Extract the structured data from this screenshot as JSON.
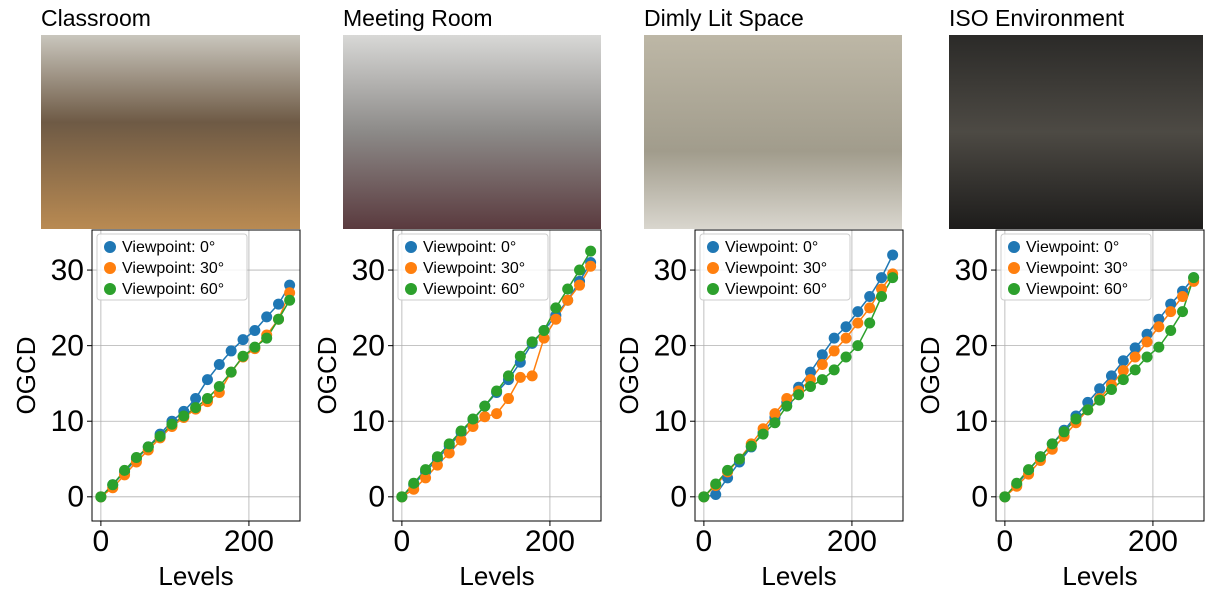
{
  "chart_data": [
    {
      "type": "line",
      "title": "Classroom",
      "xlabel": "Levels",
      "ylabel": "OGCD",
      "x": [
        0,
        16,
        32,
        48,
        64,
        80,
        96,
        112,
        128,
        144,
        160,
        176,
        192,
        208,
        224,
        240,
        255
      ],
      "series": [
        {
          "name": "Viewpoint: 0°",
          "color": "#1f77b4",
          "values": [
            0,
            1.6,
            3.3,
            5.0,
            6.6,
            8.3,
            10.0,
            11.3,
            13.0,
            15.5,
            17.5,
            19.3,
            20.8,
            22.0,
            23.8,
            25.5,
            28.0
          ]
        },
        {
          "name": "Viewpoint: 30°",
          "color": "#ff7f0e",
          "values": [
            0,
            1.2,
            2.9,
            4.6,
            6.2,
            7.8,
            9.3,
            10.5,
            11.6,
            12.6,
            13.8,
            16.5,
            18.5,
            19.6,
            21.4,
            23.5,
            27.0
          ]
        },
        {
          "name": "Viewpoint: 60°",
          "color": "#2ca02c",
          "values": [
            0,
            1.6,
            3.5,
            5.2,
            6.6,
            8.0,
            9.6,
            10.7,
            11.8,
            13.0,
            14.6,
            16.5,
            18.6,
            19.8,
            21.0,
            23.5,
            26.0
          ]
        }
      ],
      "xlim": [
        -12,
        269
      ],
      "ylim": [
        -3.2,
        35.3
      ],
      "xticks": [
        0,
        200
      ],
      "yticks": [
        0,
        10,
        20,
        30
      ],
      "grid": true,
      "legend": "upper left"
    },
    {
      "type": "line",
      "title": "Meeting Room",
      "xlabel": "Levels",
      "ylabel": "OGCD",
      "x": [
        0,
        16,
        32,
        48,
        64,
        80,
        96,
        112,
        128,
        144,
        160,
        176,
        192,
        208,
        224,
        240,
        255
      ],
      "series": [
        {
          "name": "Viewpoint: 0°",
          "color": "#1f77b4",
          "values": [
            0,
            1.6,
            3.3,
            5.0,
            6.7,
            8.5,
            10.2,
            12.0,
            13.8,
            15.5,
            17.8,
            20.3,
            22.0,
            24.0,
            26.0,
            28.5,
            31.0
          ]
        },
        {
          "name": "Viewpoint: 30°",
          "color": "#ff7f0e",
          "values": [
            0,
            1.0,
            2.5,
            4.2,
            5.8,
            7.5,
            9.3,
            10.6,
            11.0,
            13.0,
            15.8,
            16.0,
            21.0,
            23.5,
            26.0,
            28.0,
            30.5
          ]
        },
        {
          "name": "Viewpoint: 60°",
          "color": "#2ca02c",
          "values": [
            0,
            1.8,
            3.6,
            5.3,
            7.0,
            8.7,
            10.3,
            12.0,
            14.0,
            16.0,
            18.6,
            20.5,
            22.0,
            25.0,
            27.5,
            30.0,
            32.5
          ]
        }
      ],
      "xlim": [
        -12,
        269
      ],
      "ylim": [
        -3.2,
        35.3
      ],
      "xticks": [
        0,
        200
      ],
      "yticks": [
        0,
        10,
        20,
        30
      ],
      "grid": true,
      "legend": "upper left"
    },
    {
      "type": "line",
      "title": "Dimly Lit Space",
      "xlabel": "Levels",
      "ylabel": "OGCD",
      "x": [
        0,
        16,
        32,
        48,
        64,
        80,
        96,
        112,
        128,
        144,
        160,
        176,
        192,
        208,
        224,
        240,
        255
      ],
      "series": [
        {
          "name": "Viewpoint: 0°",
          "color": "#1f77b4",
          "values": [
            0,
            0.3,
            2.5,
            4.6,
            6.6,
            8.5,
            10.5,
            12.5,
            14.5,
            16.5,
            18.8,
            21.0,
            22.5,
            24.5,
            26.5,
            29.0,
            32.0
          ]
        },
        {
          "name": "Viewpoint: 30°",
          "color": "#ff7f0e",
          "values": [
            0,
            1.5,
            3.3,
            5.0,
            7.0,
            9.0,
            11.0,
            13.0,
            14.0,
            15.5,
            17.5,
            19.3,
            21.0,
            23.0,
            25.0,
            27.5,
            29.5
          ]
        },
        {
          "name": "Viewpoint: 60°",
          "color": "#2ca02c",
          "values": [
            0,
            1.7,
            3.5,
            5.0,
            6.7,
            8.3,
            9.8,
            12.0,
            13.5,
            14.6,
            15.5,
            16.8,
            18.5,
            20.0,
            23.0,
            26.5,
            29.0
          ]
        }
      ],
      "xlim": [
        -12,
        269
      ],
      "ylim": [
        -3.2,
        35.3
      ],
      "xticks": [
        0,
        200
      ],
      "yticks": [
        0,
        10,
        20,
        30
      ],
      "grid": true,
      "legend": "upper left"
    },
    {
      "type": "line",
      "title": "ISO Environment",
      "xlabel": "Levels",
      "ylabel": "OGCD",
      "x": [
        0,
        16,
        32,
        48,
        64,
        80,
        96,
        112,
        128,
        144,
        160,
        176,
        192,
        208,
        224,
        240,
        255
      ],
      "series": [
        {
          "name": "Viewpoint: 0°",
          "color": "#1f77b4",
          "values": [
            0,
            1.6,
            3.5,
            5.3,
            7.0,
            8.8,
            10.7,
            12.5,
            14.3,
            16.0,
            18.0,
            19.7,
            21.5,
            23.5,
            25.5,
            27.2,
            29.0
          ]
        },
        {
          "name": "Viewpoint: 30°",
          "color": "#ff7f0e",
          "values": [
            0,
            1.4,
            3.0,
            4.8,
            6.3,
            8.0,
            9.8,
            11.5,
            13.0,
            14.8,
            16.7,
            18.5,
            20.5,
            22.5,
            24.5,
            26.5,
            28.5
          ]
        },
        {
          "name": "Viewpoint: 60°",
          "color": "#2ca02c",
          "values": [
            0,
            1.8,
            3.6,
            5.3,
            7.0,
            8.6,
            10.3,
            11.5,
            12.8,
            14.2,
            15.5,
            16.8,
            18.5,
            19.8,
            22.0,
            24.5,
            29.0
          ]
        }
      ],
      "xlim": [
        -12,
        269
      ],
      "ylim": [
        -3.2,
        35.3
      ],
      "xticks": [
        0,
        200
      ],
      "yticks": [
        0,
        10,
        20,
        30
      ],
      "grid": true,
      "legend": "upper left"
    }
  ]
}
